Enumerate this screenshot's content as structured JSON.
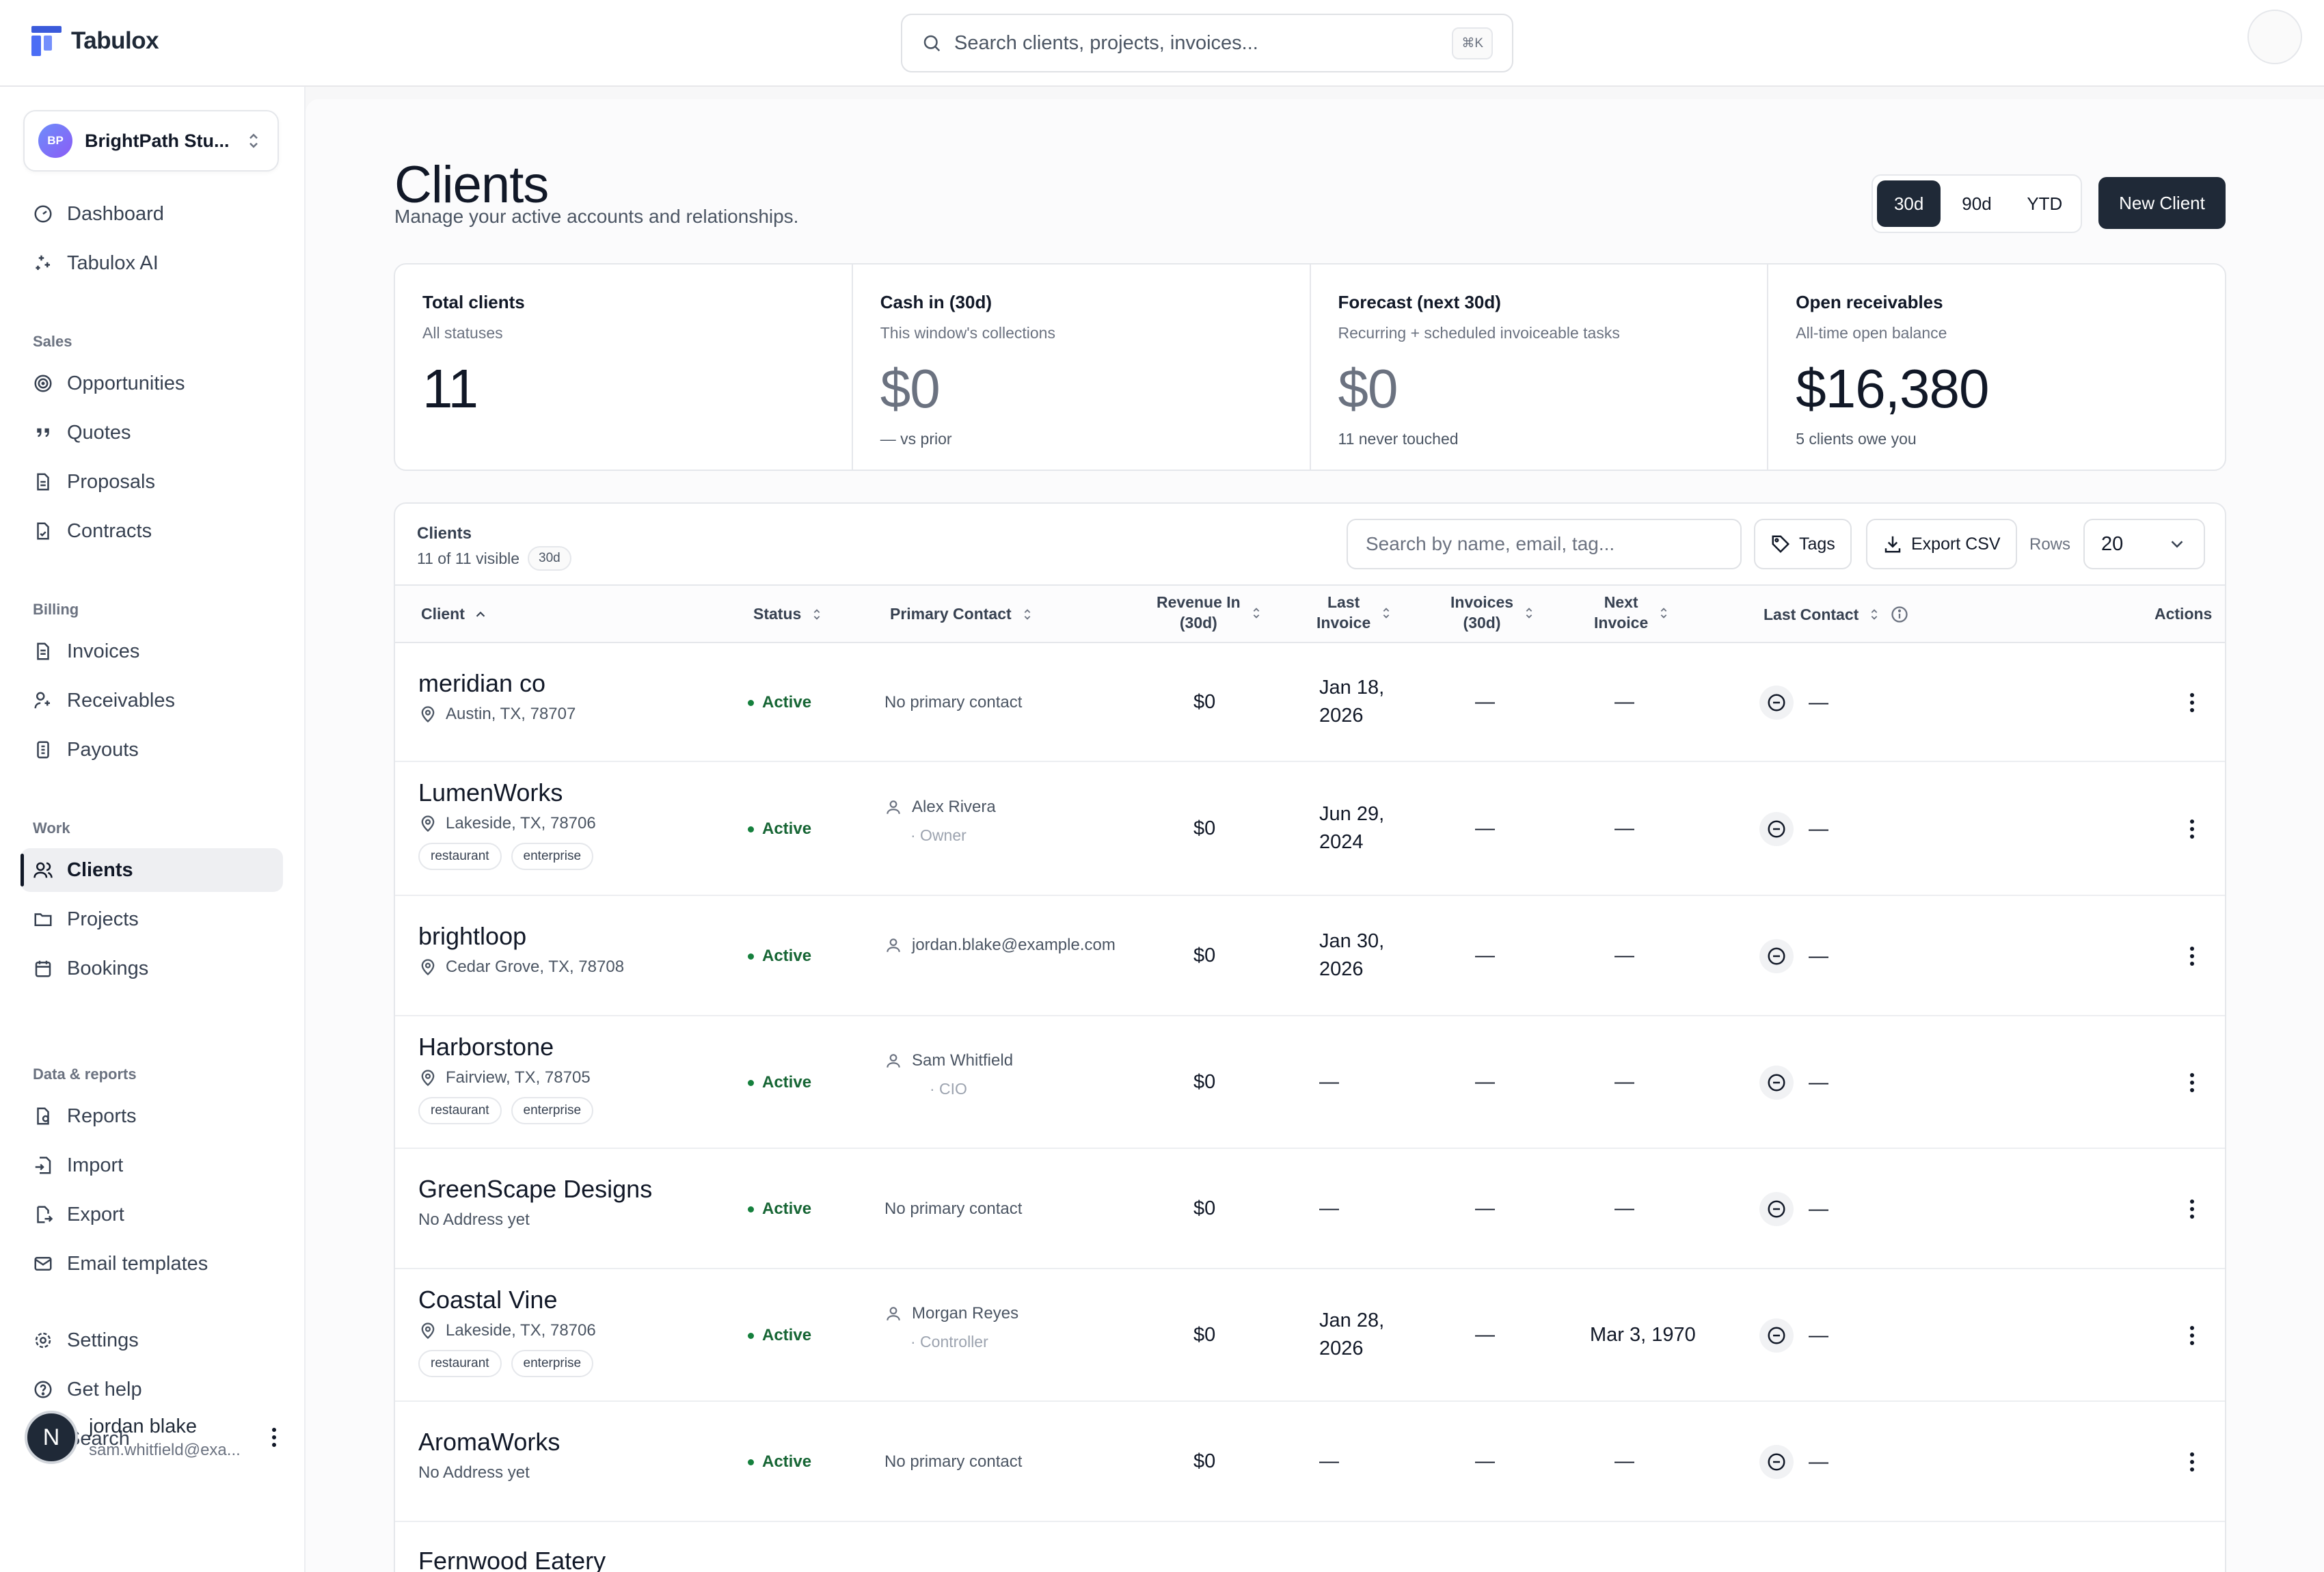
{
  "app": {
    "name": "Tabulox"
  },
  "search": {
    "placeholder": "Search clients, projects, invoices...",
    "shortcut": "⌘K"
  },
  "workspace": {
    "initials": "BP",
    "name": "BrightPath Stu..."
  },
  "nav": {
    "top": [
      {
        "label": "Dashboard",
        "icon": "dashboard-icon"
      },
      {
        "label": "Tabulox AI",
        "icon": "sparkles-icon"
      }
    ],
    "sales_label": "Sales",
    "sales": [
      {
        "label": "Opportunities",
        "icon": "target-icon"
      },
      {
        "label": "Quotes",
        "icon": "quote-icon"
      },
      {
        "label": "Proposals",
        "icon": "document-icon"
      },
      {
        "label": "Contracts",
        "icon": "contract-icon"
      }
    ],
    "billing_label": "Billing",
    "billing": [
      {
        "label": "Invoices",
        "icon": "invoice-icon"
      },
      {
        "label": "Receivables",
        "icon": "receivables-icon"
      },
      {
        "label": "Payouts",
        "icon": "payouts-icon"
      }
    ],
    "work_label": "Work",
    "work": [
      {
        "label": "Clients",
        "icon": "users-icon",
        "active": true
      },
      {
        "label": "Projects",
        "icon": "folder-icon"
      },
      {
        "label": "Bookings",
        "icon": "calendar-icon"
      }
    ],
    "data_label": "Data & reports",
    "data": [
      {
        "label": "Reports",
        "icon": "reports-icon"
      },
      {
        "label": "Import",
        "icon": "import-icon"
      },
      {
        "label": "Export",
        "icon": "export-icon"
      },
      {
        "label": "Email templates",
        "icon": "mail-icon"
      }
    ],
    "bottom": [
      {
        "label": "Settings",
        "icon": "gear-icon"
      },
      {
        "label": "Get help",
        "icon": "help-icon"
      },
      {
        "label": "Search",
        "icon": "search-icon"
      }
    ]
  },
  "user": {
    "initial": "N",
    "name": "jordan blake",
    "email": "sam.whitfield@exa..."
  },
  "page": {
    "title": "Clients",
    "subtitle": "Manage your active accounts and relationships."
  },
  "range": {
    "options": [
      "30d",
      "90d",
      "YTD"
    ],
    "selected": "30d"
  },
  "new_client_label": "New Client",
  "kpis": [
    {
      "title": "Total clients",
      "sub": "All statuses",
      "value": "11",
      "foot": ""
    },
    {
      "title": "Cash in (30d)",
      "sub": "This window's collections",
      "value": "$0",
      "foot": "— vs prior"
    },
    {
      "title": "Forecast (next 30d)",
      "sub": "Recurring + scheduled invoiceable tasks",
      "value": "$0",
      "foot": "11 never touched"
    },
    {
      "title": "Open receivables",
      "sub": "All-time open balance",
      "value": "$16,380",
      "foot": "5 clients owe you"
    }
  ],
  "table": {
    "title": "Clients",
    "count": "11 of 11 visible",
    "range_badge": "30d",
    "search_placeholder": "Search by name, email, tag...",
    "tags_label": "Tags",
    "export_label": "Export CSV",
    "rows_label": "Rows",
    "rows_value": "20",
    "columns": {
      "client": "Client",
      "status": "Status",
      "contact": "Primary Contact",
      "revenue_1": "Revenue In",
      "revenue_2": "(30d)",
      "last_invoice_1": "Last",
      "last_invoice_2": "Invoice",
      "invoices_1": "Invoices",
      "invoices_2": "(30d)",
      "next_invoice_1": "Next",
      "next_invoice_2": "Invoice",
      "last_contact": "Last Contact",
      "actions": "Actions"
    },
    "rows": [
      {
        "name": "meridian co",
        "address": "Austin, TX, 78707",
        "tags": [],
        "status": "Active",
        "contact": "No primary contact",
        "contact_role": "",
        "revenue": "$0",
        "last_invoice_1": "Jan 18,",
        "last_invoice_2": "2026",
        "invoices": "—",
        "next_invoice": "—",
        "last_contact": "—"
      },
      {
        "name": "LumenWorks",
        "address": "Lakeside, TX, 78706",
        "tags": [
          "restaurant",
          "enterprise"
        ],
        "status": "Active",
        "contact": "Alex Rivera",
        "contact_role": "· Owner",
        "revenue": "$0",
        "last_invoice_1": "Jun 29,",
        "last_invoice_2": "2024",
        "invoices": "—",
        "next_invoice": "—",
        "last_contact": "—"
      },
      {
        "name": "brightloop",
        "address": "Cedar Grove, TX, 78708",
        "tags": [],
        "status": "Active",
        "contact": "jordan.blake@example.com",
        "contact_role": "",
        "revenue": "$0",
        "last_invoice_1": "Jan 30,",
        "last_invoice_2": "2026",
        "invoices": "—",
        "next_invoice": "—",
        "last_contact": "—"
      },
      {
        "name": "Harborstone",
        "address": "Fairview, TX, 78705",
        "tags": [
          "restaurant",
          "enterprise"
        ],
        "status": "Active",
        "contact": "Sam Whitfield",
        "contact_role": "· CIO",
        "revenue": "$0",
        "last_invoice_1": "—",
        "last_invoice_2": "",
        "invoices": "—",
        "next_invoice": "—",
        "last_contact": "—"
      },
      {
        "name": "GreenScape Designs",
        "address": "No Address yet",
        "tags": [],
        "status": "Active",
        "contact": "No primary contact",
        "contact_role": "",
        "revenue": "$0",
        "last_invoice_1": "—",
        "last_invoice_2": "",
        "invoices": "—",
        "next_invoice": "—",
        "last_contact": "—"
      },
      {
        "name": "Coastal Vine",
        "address": "Lakeside, TX, 78706",
        "tags": [
          "restaurant",
          "enterprise"
        ],
        "status": "Active",
        "contact": "Morgan Reyes",
        "contact_role": "· Controller",
        "revenue": "$0",
        "last_invoice_1": "Jan 28,",
        "last_invoice_2": "2026",
        "invoices": "—",
        "next_invoice": "Mar 3, 1970",
        "last_contact": "—"
      },
      {
        "name": "AromaWorks",
        "address": "No Address yet",
        "tags": [],
        "status": "Active",
        "contact": "No primary contact",
        "contact_role": "",
        "revenue": "$0",
        "last_invoice_1": "—",
        "last_invoice_2": "",
        "invoices": "—",
        "next_invoice": "—",
        "last_contact": "—"
      },
      {
        "name": "Fernwood Eatery",
        "address": "",
        "tags": [],
        "status": "",
        "contact": "",
        "contact_role": "",
        "revenue": "",
        "last_invoice_1": "",
        "last_invoice_2": "",
        "invoices": "",
        "next_invoice": "",
        "last_contact": ""
      }
    ]
  }
}
